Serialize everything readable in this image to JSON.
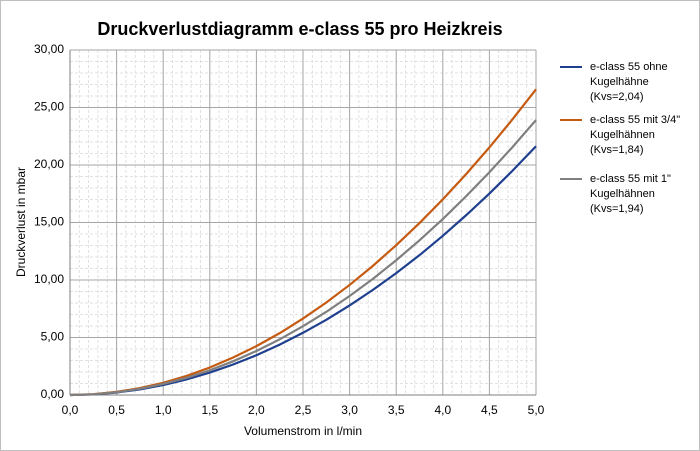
{
  "chart_data": {
    "type": "line",
    "title": "Druckverlustdiagramm e-class 55 pro Heizkreis",
    "x_label": "Volumenstrom in l/min",
    "y_label": "Druckverlust in mbar",
    "x": [
      0,
      0.25,
      0.5,
      0.75,
      1,
      1.25,
      1.5,
      1.75,
      2,
      2.25,
      2.5,
      2.75,
      3,
      3.25,
      3.5,
      3.75,
      4,
      4.25,
      4.5,
      4.75,
      5
    ],
    "series": [
      {
        "name": "e-class 55 ohne Kugelhähne (Kvs=2,04)",
        "color": "#1f3f8f",
        "values": [
          0,
          0.05,
          0.22,
          0.49,
          0.87,
          1.35,
          1.95,
          2.65,
          3.46,
          4.38,
          5.41,
          6.54,
          7.79,
          9.14,
          10.6,
          12.16,
          13.84,
          15.63,
          17.52,
          19.52,
          21.63
        ]
      },
      {
        "name": "e-class 55 mit 3/4\" Kugelhähnen (Kvs=1,84)",
        "color": "#c55a11",
        "values": [
          0,
          0.07,
          0.27,
          0.6,
          1.06,
          1.66,
          2.39,
          3.26,
          4.25,
          5.38,
          6.65,
          8.04,
          9.57,
          11.23,
          13.03,
          14.95,
          17.01,
          19.21,
          21.53,
          23.99,
          26.58
        ]
      },
      {
        "name": "e-class 55 mit 1\" Kugelhähnen (Kvs=1,94)",
        "color": "#7f7f7f",
        "values": [
          0,
          0.06,
          0.24,
          0.54,
          0.96,
          1.49,
          2.15,
          2.93,
          3.83,
          4.84,
          5.98,
          7.23,
          8.61,
          10.1,
          11.72,
          13.45,
          15.3,
          17.28,
          19.37,
          21.58,
          23.91
        ]
      }
    ],
    "xlim": [
      0,
      5
    ],
    "ylim": [
      0,
      30
    ],
    "xticks": [
      {
        "value": 0,
        "label": "0,0"
      },
      {
        "value": 0.5,
        "label": "0,5"
      },
      {
        "value": 1,
        "label": "1,0"
      },
      {
        "value": 1.5,
        "label": "1,5"
      },
      {
        "value": 2,
        "label": "2,0"
      },
      {
        "value": 2.5,
        "label": "2,5"
      },
      {
        "value": 3,
        "label": "3,0"
      },
      {
        "value": 3.5,
        "label": "3,5"
      },
      {
        "value": 4,
        "label": "4,0"
      },
      {
        "value": 4.5,
        "label": "4,5"
      },
      {
        "value": 5,
        "label": "5,0"
      }
    ],
    "yticks": [
      {
        "value": 0,
        "label": "0,00"
      },
      {
        "value": 5,
        "label": "5,00"
      },
      {
        "value": 10,
        "label": "10,00"
      },
      {
        "value": 15,
        "label": "15,00"
      },
      {
        "value": 20,
        "label": "20,00"
      },
      {
        "value": 25,
        "label": "25,00"
      },
      {
        "value": 30,
        "label": "30,00"
      }
    ],
    "grid": true,
    "minor_grid": true,
    "legend": "right"
  }
}
